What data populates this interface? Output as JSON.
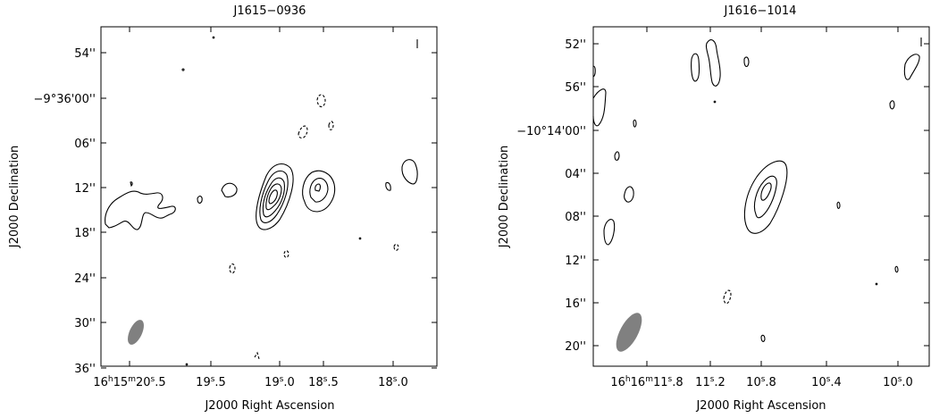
{
  "colors": {
    "beam": "#808080",
    "contour": "#000000",
    "background": "#ffffff"
  },
  "chart_data": [
    {
      "type": "contour",
      "title": "J1615−0936",
      "xlabel": "J2000 Right Ascension",
      "ylabel": "J2000 Declination",
      "x_ticks": [
        {
          "h": "16",
          "m": "15",
          "s": "20",
          "frac": ".5",
          "value": "16h15m20.5s"
        },
        {
          "s": "19",
          "frac": ".5",
          "value": "19.5s"
        },
        {
          "s": "19",
          "frac": ".0",
          "value": "19.0s"
        },
        {
          "s": "18",
          "frac": ".5",
          "value": "18.5s"
        },
        {
          "s": "18",
          "frac": ".0",
          "value": "18.0s"
        }
      ],
      "y_ticks": [
        "54''",
        "−9°36'00''",
        "06''",
        "12''",
        "18''",
        "24''",
        "30''",
        "36''"
      ],
      "contour_levels_visible": 5,
      "beam": "filled grey ellipse, lower left"
    },
    {
      "type": "contour",
      "title": "J1616−1014",
      "xlabel": "J2000 Right Ascension",
      "ylabel": "J2000 Declination",
      "x_ticks": [
        {
          "h": "16",
          "m": "16",
          "s": "11",
          "frac": ".8",
          "value": "16h16m11.8s"
        },
        {
          "s": "11",
          "frac": ".2",
          "value": "11.2s"
        },
        {
          "s": "10",
          "frac": ".8",
          "value": "10.8s"
        },
        {
          "s": "10",
          "frac": ".4",
          "value": "10.4s"
        },
        {
          "s": "10",
          "frac": ".0",
          "value": "10.0s"
        }
      ],
      "y_ticks": [
        "52''",
        "56''",
        "−10°14'00''",
        "04''",
        "08''",
        "12''",
        "16''",
        "20''"
      ],
      "contour_levels_visible": 3,
      "beam": "filled grey ellipse, lower left"
    }
  ]
}
